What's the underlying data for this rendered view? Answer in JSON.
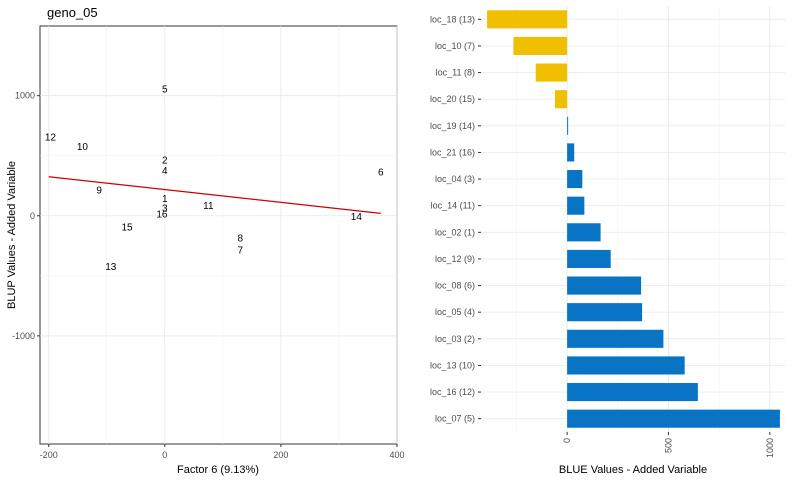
{
  "chart_data": [
    {
      "type": "scatter",
      "title": "geno_05",
      "xlabel": "Factor 6 (9.13%)",
      "ylabel": "BLUP Values - Added Variable",
      "xlim": [
        -215,
        400
      ],
      "ylim": [
        -1900,
        1580
      ],
      "xticks": [
        -200,
        0,
        200,
        400
      ],
      "yticks": [
        -1000,
        0,
        1000
      ],
      "grid": true,
      "points": [
        {
          "label": "5",
          "x": 0,
          "y": 1060
        },
        {
          "label": "12",
          "x": -197,
          "y": 660
        },
        {
          "label": "10",
          "x": -142,
          "y": 580
        },
        {
          "label": "2",
          "x": 0,
          "y": 470
        },
        {
          "label": "4",
          "x": 0,
          "y": 380
        },
        {
          "label": "6",
          "x": 372,
          "y": 370
        },
        {
          "label": "9",
          "x": -113,
          "y": 220
        },
        {
          "label": "1",
          "x": 0,
          "y": 150
        },
        {
          "label": "11",
          "x": 75,
          "y": 90
        },
        {
          "label": "3",
          "x": 0,
          "y": 70
        },
        {
          "label": "16",
          "x": -5,
          "y": 20
        },
        {
          "label": "14",
          "x": 330,
          "y": 0
        },
        {
          "label": "15",
          "x": -65,
          "y": -90
        },
        {
          "label": "8",
          "x": 130,
          "y": -180
        },
        {
          "label": "7",
          "x": 130,
          "y": -280
        },
        {
          "label": "13",
          "x": -93,
          "y": -420
        }
      ],
      "regression_line": {
        "x": [
          -200,
          372
        ],
        "y": [
          325,
          20
        ],
        "color": "#cc0000"
      }
    },
    {
      "type": "bar",
      "orientation": "horizontal",
      "xlabel": "BLUE Values - Added Variable",
      "xlim": [
        -425,
        1075
      ],
      "xticks": [
        0,
        500,
        1000
      ],
      "grid": true,
      "negative_color": "#f0c000",
      "positive_color": "#0a74c4",
      "categories": [
        "loc_18 (13)",
        "loc_10 (7)",
        "loc_11 (8)",
        "loc_20 (15)",
        "loc_19 (14)",
        "loc_21 (16)",
        "loc_04 (3)",
        "loc_14 (11)",
        "loc_02 (1)",
        "loc_12 (9)",
        "loc_08 (6)",
        "loc_05 (4)",
        "loc_03 (2)",
        "loc_13 (10)",
        "loc_16 (12)",
        "loc_07 (5)"
      ],
      "values": [
        -395,
        -265,
        -155,
        -60,
        5,
        35,
        75,
        85,
        165,
        215,
        365,
        370,
        475,
        580,
        645,
        1050
      ]
    }
  ]
}
